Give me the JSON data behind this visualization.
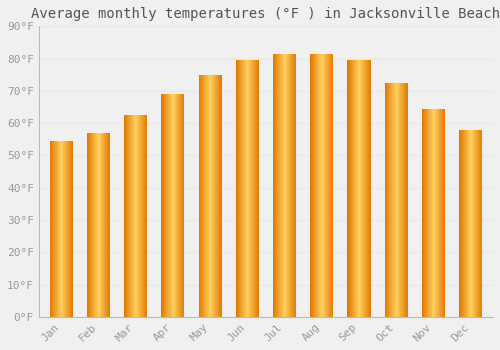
{
  "title": "Average monthly temperatures (°F ) in Jacksonville Beach",
  "months": [
    "Jan",
    "Feb",
    "Mar",
    "Apr",
    "May",
    "Jun",
    "Jul",
    "Aug",
    "Sep",
    "Oct",
    "Nov",
    "Dec"
  ],
  "values": [
    54.5,
    57.0,
    62.5,
    69.0,
    75.0,
    79.5,
    81.5,
    81.5,
    79.5,
    72.5,
    64.5,
    58.0
  ],
  "bar_color_main": "#FFAA00",
  "bar_color_light": "#FFD060",
  "bar_color_dark": "#E07800",
  "bar_color_edge": "#CC8800",
  "ylim": [
    0,
    90
  ],
  "ytick_step": 10,
  "background_color": "#f0f0f0",
  "grid_color": "#e8e8e8",
  "title_fontsize": 10,
  "tick_fontsize": 8,
  "tick_label_color": "#999999",
  "font_family": "monospace"
}
